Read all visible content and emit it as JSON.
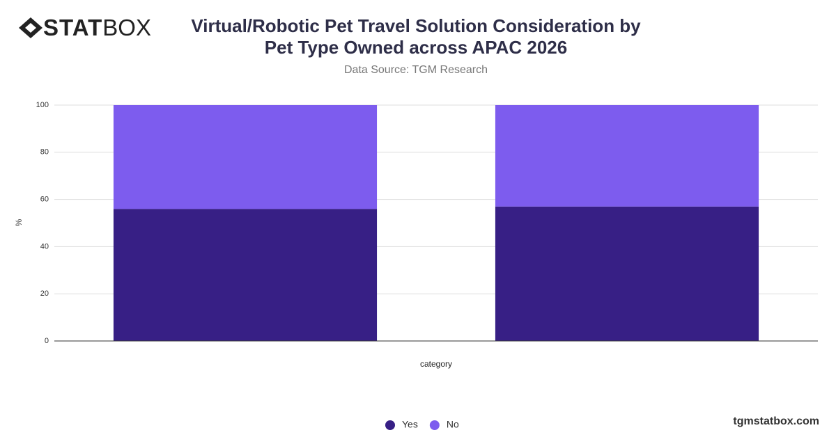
{
  "logo": {
    "bold": "STAT",
    "light": "BOX"
  },
  "footer": "tgmstatbox.com",
  "chart_data": {
    "type": "stacked_bar",
    "title": "Virtual/Robotic Pet Travel Solution Consideration by Pet Type Owned across APAC 2026",
    "subtitle": "Data Source: TGM Research",
    "x_label": "category",
    "y_label": "%",
    "categories": [
      null,
      null
    ],
    "series": [
      {
        "name": "Yes",
        "color": "#371f85",
        "values": [
          56,
          57
        ]
      },
      {
        "name": "No",
        "color": "#7d5cee",
        "values": [
          44,
          43
        ]
      }
    ],
    "ylim": [
      0,
      100
    ],
    "yticks": [
      0,
      20,
      40,
      60,
      80,
      100
    ],
    "grid": true,
    "legend": "bottom"
  }
}
